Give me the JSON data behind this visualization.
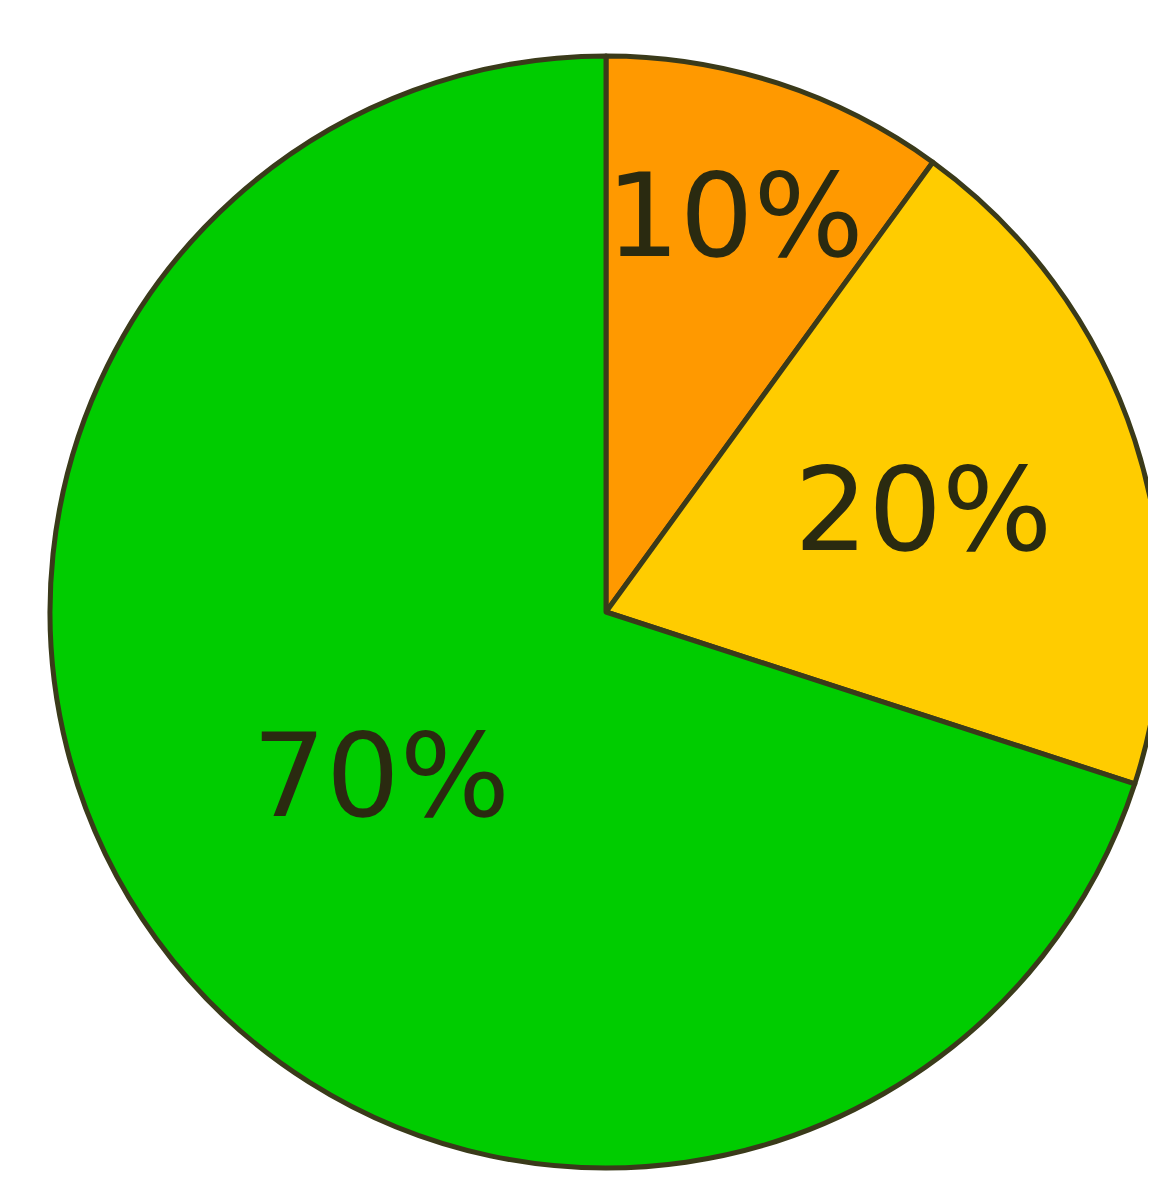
{
  "chart_data": {
    "type": "pie",
    "categories": [
      null,
      null,
      null
    ],
    "values": [
      10,
      20,
      70
    ],
    "colors": [
      "#ff9900",
      "#ffcc00",
      "#00cc00"
    ],
    "value_labels": [
      "10%",
      "20%",
      "70%"
    ]
  }
}
